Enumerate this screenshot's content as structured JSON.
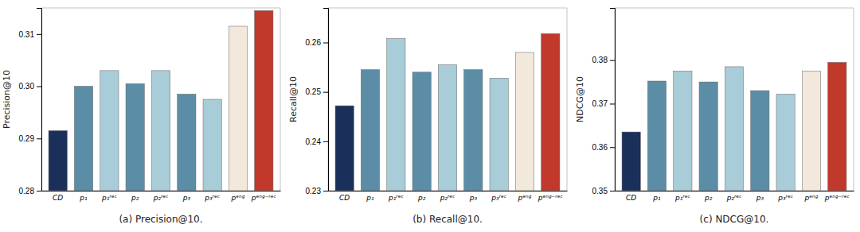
{
  "chart_data": [
    {
      "type": "bar",
      "title": "(a) Precision@10.",
      "ylabel": "Precision@10",
      "categories": [
        "CD",
        "p₁",
        "p₁ʳᵉᶜ",
        "p₂",
        "p₂ʳᵉᶜ",
        "p₃",
        "p₃ʳᵉᶜ",
        "pᵉⁿᵍ",
        "pᵉⁿᵍ⁻ʳᵉᶜ"
      ],
      "values": [
        0.2915,
        0.3,
        0.303,
        0.3005,
        0.303,
        0.2985,
        0.2975,
        0.3115,
        0.3145
      ],
      "colors": [
        "#1b2f5b",
        "#5b8ea6",
        "#a8ccd8",
        "#5b8ea6",
        "#a8ccd8",
        "#5b8ea6",
        "#a8ccd8",
        "#f2e8dc",
        "#c0392b"
      ],
      "ylim": [
        0.28,
        0.315
      ],
      "yticks": [
        0.28,
        0.29,
        {
          "value": 0.3,
          "label": "0.30"
        },
        0.31
      ],
      "grid": false
    },
    {
      "type": "bar",
      "title": "(b) Recall@10.",
      "ylabel": "Recall@10",
      "categories": [
        "CD",
        "p₁",
        "p₁ʳᵉᶜ",
        "p₂",
        "p₂ʳᵉᶜ",
        "p₃",
        "p₃ʳᵉᶜ",
        "pᵉⁿᵍ",
        "pᵉⁿᵍ⁻ʳᵉᶜ"
      ],
      "values": [
        0.2472,
        0.2545,
        0.2608,
        0.254,
        0.2555,
        0.2545,
        0.2528,
        0.258,
        0.2618
      ],
      "colors": [
        "#1b2f5b",
        "#5b8ea6",
        "#a8ccd8",
        "#5b8ea6",
        "#a8ccd8",
        "#5b8ea6",
        "#a8ccd8",
        "#f2e8dc",
        "#c0392b"
      ],
      "ylim": [
        0.23,
        0.267
      ],
      "yticks": [
        0.23,
        0.24,
        0.25,
        0.26
      ],
      "grid": false
    },
    {
      "type": "bar",
      "title": "(c) NDCG@10.",
      "ylabel": "NDCG@10",
      "categories": [
        "CD",
        "p₁",
        "p₁ʳᵉᶜ",
        "p₂",
        "p₂ʳᵉᶜ",
        "p₃",
        "p₃ʳᵉᶜ",
        "pᵉⁿᵍ",
        "pᵉⁿᵍ⁻ʳᵉᶜ"
      ],
      "values": [
        0.3635,
        0.3752,
        0.3775,
        0.375,
        0.3785,
        0.373,
        0.3722,
        0.3775,
        0.3795
      ],
      "colors": [
        "#1b2f5b",
        "#5b8ea6",
        "#a8ccd8",
        "#5b8ea6",
        "#a8ccd8",
        "#5b8ea6",
        "#a8ccd8",
        "#f2e8dc",
        "#c0392b"
      ],
      "ylim": [
        0.35,
        0.392
      ],
      "yticks": [
        0.35,
        0.36,
        0.37,
        0.38
      ],
      "grid": false
    }
  ]
}
